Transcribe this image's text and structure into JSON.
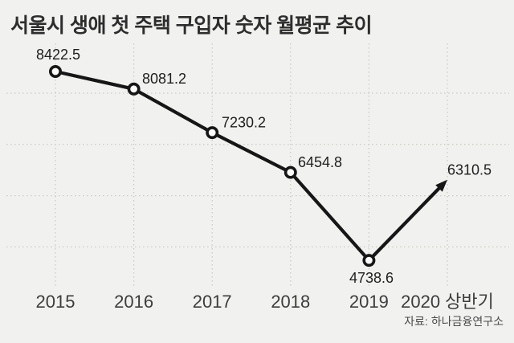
{
  "title": "서울시 생애 첫 주택 구입자 숫자 월평균 추이",
  "source": "자료: 하나금융연구소",
  "chart_data": {
    "type": "line",
    "title": "서울시 생애 첫 주택 구입자 숫자 월평균 추이",
    "categories": [
      "2015",
      "2016",
      "2017",
      "2018",
      "2019",
      "2020 상반기"
    ],
    "values": [
      8422.5,
      8081.2,
      7230.2,
      6454.8,
      4738.6,
      6310.5
    ],
    "data_labels": [
      "8422.5",
      "8081.2",
      "7230.2",
      "6454.8",
      "4738.6",
      "6310.5"
    ],
    "xlabel": "",
    "ylabel": "",
    "ylim": [
      4200,
      8800
    ],
    "gridline_values": [
      8000,
      7000,
      6000,
      5000
    ],
    "grid": "dotted",
    "legend": "none",
    "marker": "open-circle",
    "last_segment_style": "arrow",
    "line_color": "#161616",
    "marker_fill": "#fbfbfa",
    "grid_color": "#cdcdca",
    "background_color": "#f1f1ef",
    "source": "자료: 하나금융연구소"
  }
}
